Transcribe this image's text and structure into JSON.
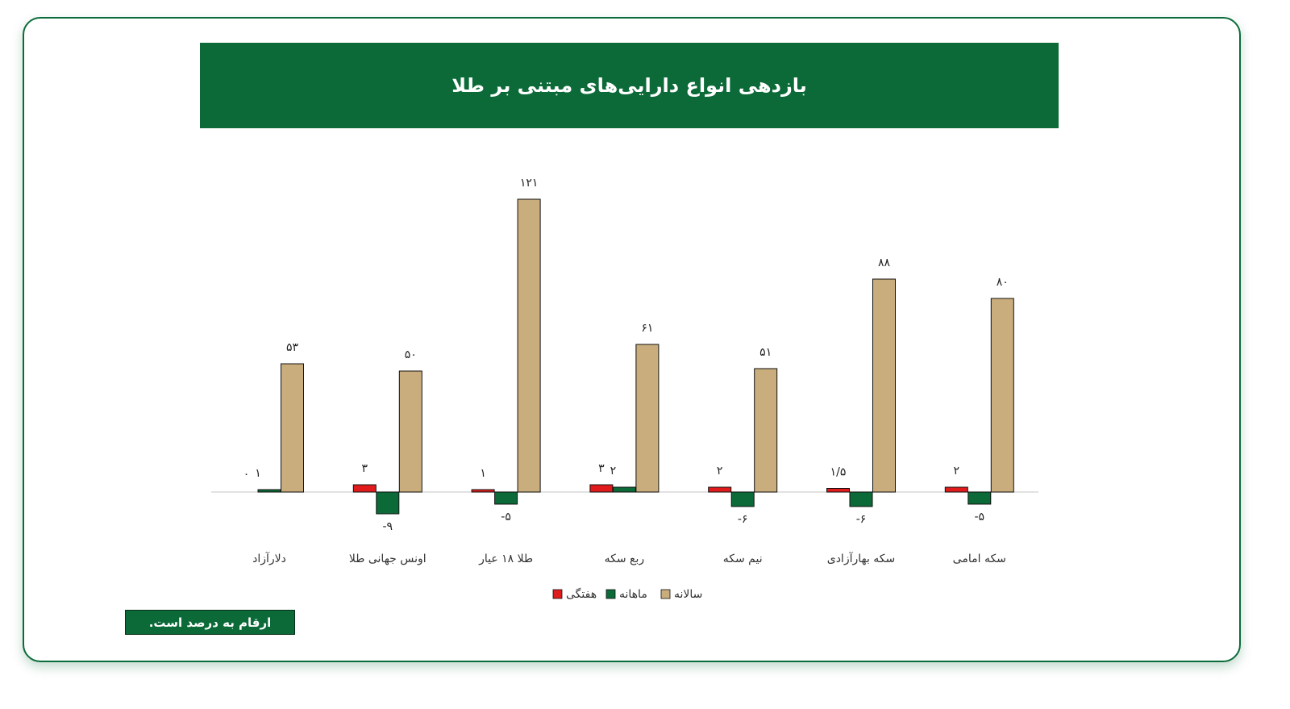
{
  "page": {
    "title": "بازدهی انواع دارایی‌های مبتنی بر طلا",
    "footnote": "ارقام به درصد است."
  },
  "colors": {
    "frame": "#0b6b3a",
    "banner": "#0b6a38",
    "weekly": "#e11b1b",
    "monthly": "#0b6a38",
    "yearly": "#c9ad7c"
  },
  "chart_data": {
    "type": "bar",
    "title": "بازدهی انواع دارایی‌های مبتنی بر طلا",
    "xlabel": "",
    "ylabel": "",
    "grid": false,
    "legend_position": "bottom",
    "categories": [
      "دلارآزاد",
      "اونس جهانی طلا",
      "طلا ۱۸ عیار",
      "ربع سکه",
      "نیم سکه",
      "سکه بهارآزادی",
      "سکه امامی"
    ],
    "series": [
      {
        "name": "هفتگی",
        "values": [
          0,
          3,
          1,
          3,
          2,
          1.5,
          2
        ],
        "labels": [
          "۰",
          "۳",
          "۱",
          "۳",
          "۲",
          "۱/۵",
          "۲"
        ]
      },
      {
        "name": "ماهانه",
        "values": [
          1,
          -9,
          -5,
          2,
          -6,
          -6,
          -5
        ],
        "labels": [
          "۱",
          "-۹",
          "-۵",
          "۲",
          "-۶",
          "-۶",
          "-۵"
        ]
      },
      {
        "name": "سالانه",
        "values": [
          53,
          50,
          121,
          61,
          51,
          88,
          80
        ],
        "labels": [
          "۵۳",
          "۵۰",
          "۱۲۱",
          "۶۱",
          "۵۱",
          "۸۸",
          "۸۰"
        ]
      }
    ]
  }
}
